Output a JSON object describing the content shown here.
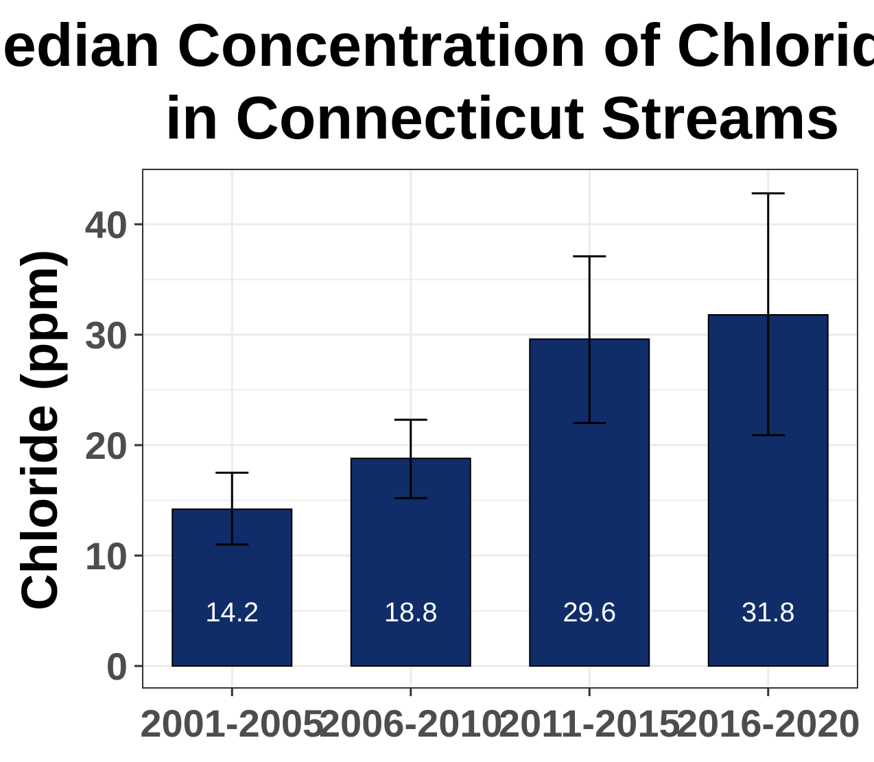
{
  "chart_data": {
    "type": "bar",
    "title_lines": [
      "Median Concentration of Chloride",
      "in Connecticut Streams"
    ],
    "xlabel": "",
    "ylabel": "Chloride (ppm)",
    "categories": [
      "2001-2005",
      "2006-2010",
      "2011-2015",
      "2016-2020"
    ],
    "values": [
      14.2,
      18.8,
      29.6,
      31.8
    ],
    "value_labels": [
      "14.2",
      "18.8",
      "29.6",
      "31.8"
    ],
    "error_low": [
      11.0,
      15.2,
      22.0,
      20.9
    ],
    "error_high": [
      17.5,
      22.3,
      37.1,
      42.8
    ],
    "ylim": [
      -2,
      45
    ],
    "yticks": [
      0,
      10,
      20,
      30,
      40
    ],
    "ytick_labels": [
      "0",
      "10",
      "20",
      "30",
      "40"
    ],
    "grid": true,
    "legend": "none",
    "colors": {
      "bar_fill": "#102d6a",
      "bar_stroke": "#000000",
      "grid": "#ebebeb",
      "panel_border": "#333333",
      "tick_text": "#4d4d4d",
      "bar_label": "#ffffff"
    }
  }
}
